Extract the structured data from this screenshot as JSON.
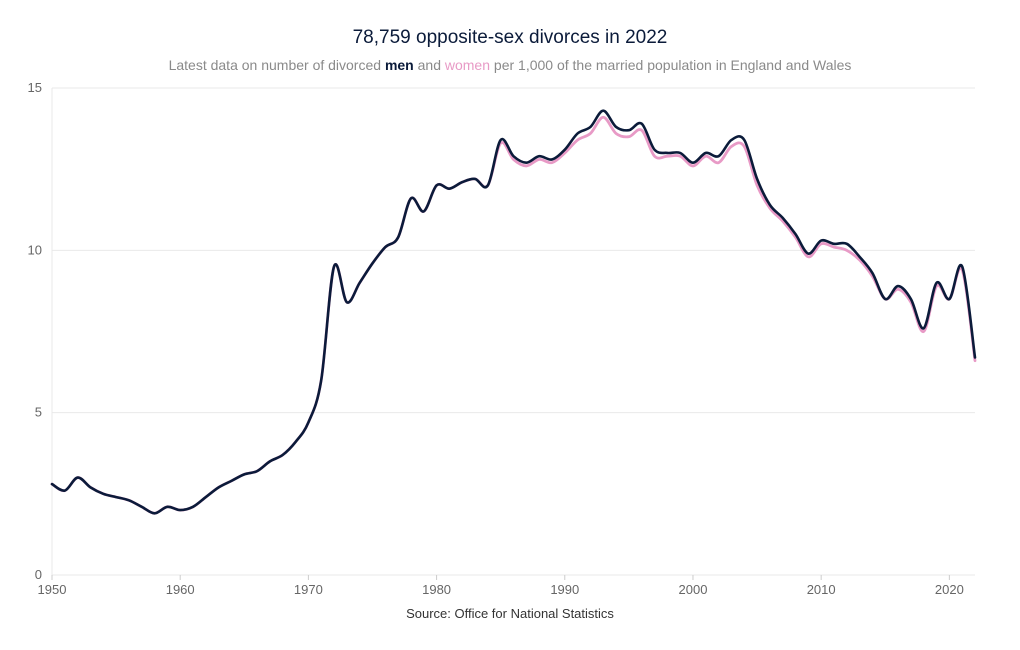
{
  "chart_data": {
    "type": "line",
    "title": "78,759 opposite-sex divorces in 2022",
    "subtitle": {
      "prefix": "Latest data on number of divorced",
      "men": "men",
      "and": "and",
      "women": "women",
      "suffix": "per 1,000 of the married population in England and Wales"
    },
    "source": "Source: Office for National Statistics",
    "xlabel": "",
    "ylabel": "",
    "xlim": [
      1950,
      2022
    ],
    "ylim": [
      0,
      15
    ],
    "x_ticks": [
      1950,
      1960,
      1970,
      1980,
      1990,
      2000,
      2010,
      2020
    ],
    "y_ticks": [
      0,
      5,
      10,
      15
    ],
    "grid": true,
    "x": [
      1950,
      1951,
      1952,
      1953,
      1954,
      1955,
      1956,
      1957,
      1958,
      1959,
      1960,
      1961,
      1962,
      1963,
      1964,
      1965,
      1966,
      1967,
      1968,
      1969,
      1970,
      1971,
      1972,
      1973,
      1974,
      1975,
      1976,
      1977,
      1978,
      1979,
      1980,
      1981,
      1982,
      1983,
      1984,
      1985,
      1986,
      1987,
      1988,
      1989,
      1990,
      1991,
      1992,
      1993,
      1994,
      1995,
      1996,
      1997,
      1998,
      1999,
      2000,
      2001,
      2002,
      2003,
      2004,
      2005,
      2006,
      2007,
      2008,
      2009,
      2010,
      2011,
      2012,
      2013,
      2014,
      2015,
      2016,
      2017,
      2018,
      2019,
      2020,
      2021,
      2022
    ],
    "series": [
      {
        "name": "women",
        "color": "#e89ac6",
        "values": [
          2.8,
          2.6,
          3.0,
          2.7,
          2.5,
          2.4,
          2.3,
          2.1,
          1.9,
          2.1,
          2.0,
          2.1,
          2.4,
          2.7,
          2.9,
          3.1,
          3.2,
          3.5,
          3.7,
          4.1,
          4.7,
          6.0,
          9.5,
          8.4,
          9.0,
          9.6,
          10.1,
          10.4,
          11.6,
          11.2,
          12.0,
          11.9,
          12.1,
          12.2,
          12.0,
          13.3,
          12.8,
          12.6,
          12.8,
          12.7,
          13.0,
          13.4,
          13.6,
          14.1,
          13.6,
          13.5,
          13.7,
          12.9,
          12.9,
          12.9,
          12.6,
          12.9,
          12.7,
          13.2,
          13.2,
          12.0,
          11.3,
          10.9,
          10.4,
          9.8,
          10.2,
          10.1,
          10.0,
          9.7,
          9.2,
          8.5,
          8.8,
          8.4,
          7.5,
          8.9,
          8.5,
          9.4,
          6.6
        ]
      },
      {
        "name": "men",
        "color": "#0b1b3a",
        "values": [
          2.8,
          2.6,
          3.0,
          2.7,
          2.5,
          2.4,
          2.3,
          2.1,
          1.9,
          2.1,
          2.0,
          2.1,
          2.4,
          2.7,
          2.9,
          3.1,
          3.2,
          3.5,
          3.7,
          4.1,
          4.7,
          6.0,
          9.5,
          8.4,
          9.0,
          9.6,
          10.1,
          10.4,
          11.6,
          11.2,
          12.0,
          11.9,
          12.1,
          12.2,
          12.0,
          13.4,
          12.9,
          12.7,
          12.9,
          12.8,
          13.1,
          13.6,
          13.8,
          14.3,
          13.8,
          13.7,
          13.9,
          13.1,
          13.0,
          13.0,
          12.7,
          13.0,
          12.9,
          13.4,
          13.4,
          12.2,
          11.4,
          11.0,
          10.5,
          9.9,
          10.3,
          10.2,
          10.2,
          9.8,
          9.3,
          8.5,
          8.9,
          8.5,
          7.6,
          9.0,
          8.5,
          9.5,
          6.7
        ]
      }
    ]
  }
}
